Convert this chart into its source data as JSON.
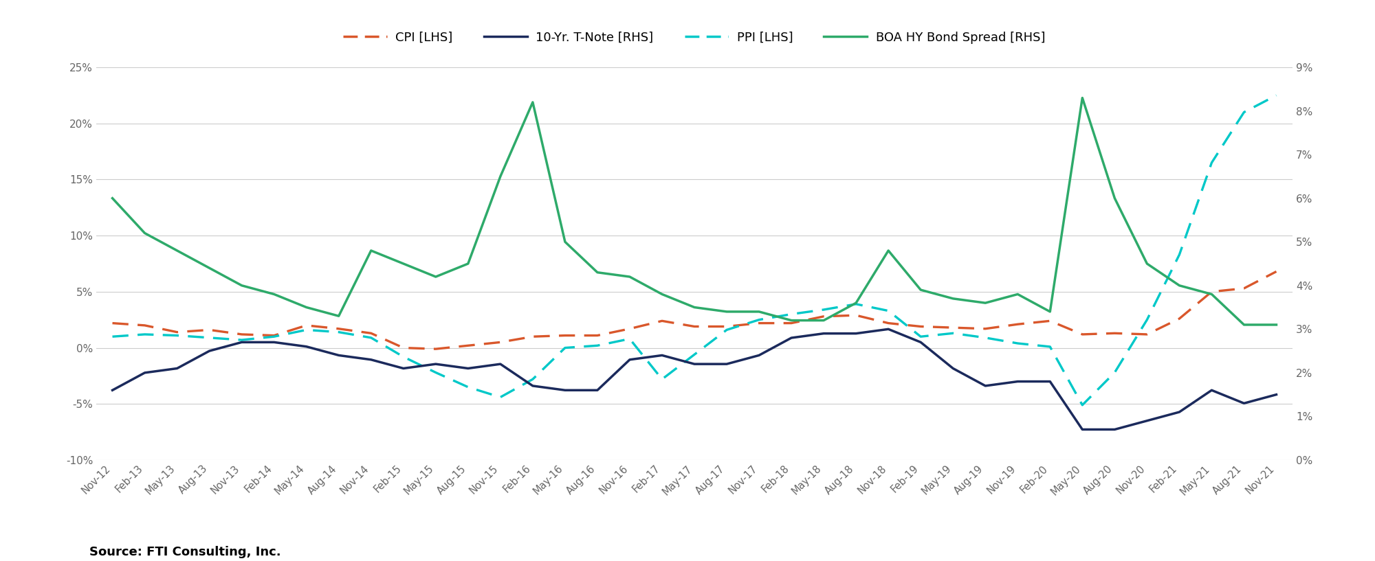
{
  "source": "Source: FTI Consulting, Inc.",
  "lhs_ylim": [
    -0.1,
    0.25
  ],
  "lhs_yticks": [
    -0.1,
    -0.05,
    0.0,
    0.05,
    0.1,
    0.15,
    0.2,
    0.25
  ],
  "lhs_yticklabels": [
    "-10%",
    "-5%",
    "0%",
    "5%",
    "10%",
    "15%",
    "20%",
    "25%"
  ],
  "rhs_ylim": [
    0.0,
    0.09
  ],
  "rhs_yticks": [
    0.0,
    0.01,
    0.02,
    0.03,
    0.04,
    0.05,
    0.06,
    0.07,
    0.08,
    0.09
  ],
  "rhs_yticklabels": [
    "0%",
    "1%",
    "2%",
    "3%",
    "4%",
    "5%",
    "6%",
    "7%",
    "8%",
    "9%"
  ],
  "x_labels": [
    "Nov-12",
    "Feb-13",
    "May-13",
    "Aug-13",
    "Nov-13",
    "Feb-14",
    "May-14",
    "Aug-14",
    "Nov-14",
    "Feb-15",
    "May-15",
    "Aug-15",
    "Nov-15",
    "Feb-16",
    "May-16",
    "Aug-16",
    "Nov-16",
    "Feb-17",
    "May-17",
    "Aug-17",
    "Nov-17",
    "Feb-18",
    "May-18",
    "Aug-18",
    "Nov-18",
    "Feb-19",
    "May-19",
    "Aug-19",
    "Nov-19",
    "Feb-20",
    "May-20",
    "Aug-20",
    "Nov-20",
    "Feb-21",
    "May-21",
    "Aug-21",
    "Nov-21"
  ],
  "cpi": [
    0.022,
    0.02,
    0.014,
    0.016,
    0.012,
    0.011,
    0.02,
    0.017,
    0.013,
    0.0,
    -0.001,
    0.002,
    0.005,
    0.01,
    0.011,
    0.011,
    0.017,
    0.024,
    0.019,
    0.019,
    0.022,
    0.022,
    0.028,
    0.029,
    0.022,
    0.019,
    0.018,
    0.017,
    0.021,
    0.024,
    0.012,
    0.013,
    0.012,
    0.026,
    0.05,
    0.053,
    0.068
  ],
  "ppi": [
    0.01,
    0.012,
    0.011,
    0.009,
    0.007,
    0.01,
    0.016,
    0.014,
    0.009,
    -0.008,
    -0.022,
    -0.035,
    -0.044,
    -0.028,
    0.0,
    0.002,
    0.008,
    -0.028,
    -0.006,
    0.016,
    0.025,
    0.03,
    0.034,
    0.039,
    0.033,
    0.01,
    0.013,
    0.009,
    0.004,
    0.001,
    -0.051,
    -0.022,
    0.025,
    0.083,
    0.165,
    0.21,
    0.225
  ],
  "tnote_rhs": [
    0.016,
    0.02,
    0.021,
    0.025,
    0.027,
    0.027,
    0.026,
    0.024,
    0.023,
    0.021,
    0.022,
    0.021,
    0.022,
    0.017,
    0.016,
    0.016,
    0.023,
    0.024,
    0.022,
    0.022,
    0.024,
    0.028,
    0.029,
    0.029,
    0.03,
    0.027,
    0.021,
    0.017,
    0.018,
    0.018,
    0.007,
    0.007,
    0.009,
    0.011,
    0.016,
    0.013,
    0.015
  ],
  "boa_hy_rhs": [
    0.06,
    0.052,
    0.048,
    0.044,
    0.04,
    0.038,
    0.035,
    0.033,
    0.048,
    0.045,
    0.042,
    0.045,
    0.065,
    0.082,
    0.05,
    0.043,
    0.042,
    0.038,
    0.035,
    0.034,
    0.034,
    0.032,
    0.032,
    0.036,
    0.048,
    0.039,
    0.037,
    0.036,
    0.038,
    0.034,
    0.083,
    0.06,
    0.045,
    0.04,
    0.038,
    0.031,
    0.031
  ],
  "cpi_color": "#D9572B",
  "tnote_color": "#1B2A5C",
  "ppi_color": "#00C8C8",
  "boa_hy_color": "#2EAA6A",
  "grid_color": "#CCCCCC",
  "background_color": "#FFFFFF",
  "tick_color": "#666666",
  "legend_fontsize": 13,
  "tick_fontsize": 11,
  "source_fontsize": 13
}
